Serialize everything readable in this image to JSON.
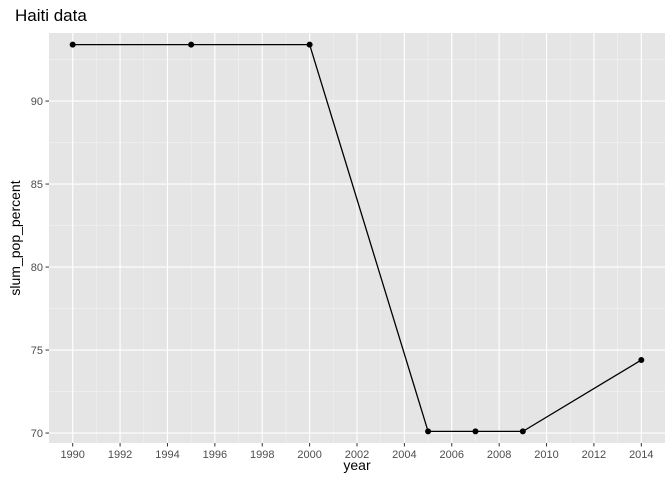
{
  "chart_data": {
    "type": "line",
    "title": "Haiti data",
    "xlabel": "year",
    "ylabel": "slum_pop_percent",
    "xlim": [
      1989,
      2015
    ],
    "ylim": [
      69.4,
      94.1
    ],
    "x_ticks": [
      1990,
      1992,
      1994,
      1996,
      1998,
      2000,
      2002,
      2004,
      2006,
      2008,
      2010,
      2012,
      2014
    ],
    "y_ticks": [
      70,
      75,
      80,
      85,
      90
    ],
    "grid": true,
    "series": [
      {
        "x": [
          1990,
          1995,
          2000,
          2005,
          2007,
          2009,
          2014
        ],
        "y": [
          93.4,
          93.4,
          93.4,
          70.1,
          70.1,
          70.1,
          74.4
        ]
      }
    ],
    "colors": {
      "panel_background": "#e5e5e5",
      "grid_major": "#ffffff",
      "grid_minor": "#f2f2f2",
      "line": "#000000",
      "point": "#000000",
      "tick_text": "#4d4d4d",
      "tick_mark": "#333333"
    }
  }
}
